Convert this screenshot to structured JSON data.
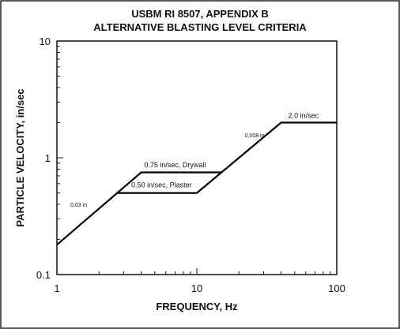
{
  "chart_data": {
    "type": "line",
    "title": "USBM RI 8507, APPENDIX B",
    "subtitle": "ALTERNATIVE BLASTING LEVEL CRITERIA",
    "xlabel": "FREQUENCY, Hz",
    "ylabel": "PARTICLE VELOCITY, in/sec",
    "x_scale": "log",
    "y_scale": "log",
    "xlim": [
      1,
      100
    ],
    "ylim": [
      0.1,
      10
    ],
    "x_ticks": [
      {
        "value": 1,
        "label": "1"
      },
      {
        "value": 10,
        "label": "10"
      },
      {
        "value": 100,
        "label": "100"
      }
    ],
    "y_ticks": [
      {
        "value": 0.1,
        "label": "0.1"
      },
      {
        "value": 1,
        "label": "1"
      },
      {
        "value": 10,
        "label": "10"
      }
    ],
    "grid": false,
    "series": [
      {
        "points": [
          {
            "x": 1,
            "y": 0.18
          },
          {
            "x": 4,
            "y": 0.75
          },
          {
            "x": 15,
            "y": 0.75
          },
          {
            "x": 40,
            "y": 2.0
          },
          {
            "x": 100,
            "y": 2.0
          }
        ]
      },
      {
        "points": [
          {
            "x": 2.7,
            "y": 0.5
          },
          {
            "x": 10,
            "y": 0.5
          },
          {
            "x": 15,
            "y": 0.75
          }
        ]
      }
    ],
    "annotations": [
      {
        "text": "0.75 in/sec, Drywall",
        "x": 4.2,
        "y": 0.83,
        "size": "normal"
      },
      {
        "text": "0.50 in/sec, Plaster",
        "x": 3.4,
        "y": 0.56,
        "size": "normal"
      },
      {
        "text": "2.0 in/sec",
        "x": 45,
        "y": 2.2,
        "size": "normal"
      },
      {
        "text": "0.008 in",
        "x": 22,
        "y": 1.5,
        "size": "small"
      },
      {
        "text": "0.03 in",
        "x": 1.25,
        "y": 0.38,
        "size": "small"
      }
    ]
  }
}
